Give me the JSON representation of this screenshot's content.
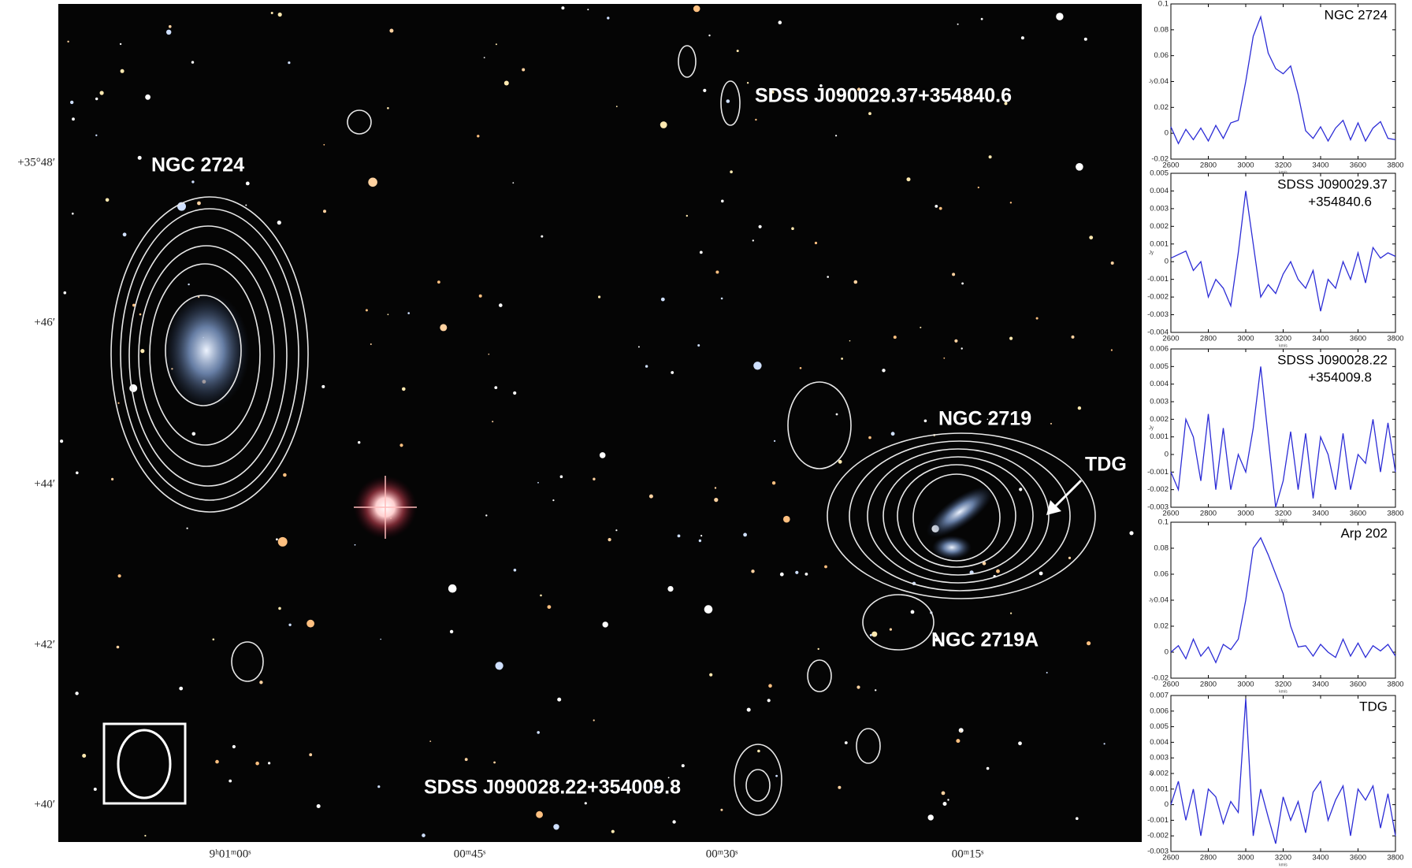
{
  "image": {
    "labels": [
      "NGC 2724",
      "SDSS J090029.37+354840.6",
      "NGC 2719",
      "TDG",
      "NGC 2719A",
      "SDSS J090028.22+354009.8"
    ],
    "ra_ticks": [
      "9ʰ01ᵐ00ˢ",
      "00ᵐ45ˢ",
      "00ᵐ30ˢ",
      "00ᵐ15ˢ"
    ],
    "dec_ticks": [
      "+35°48′",
      "+46′",
      "+44′",
      "+42′",
      "+40′"
    ]
  },
  "chart_data": [
    {
      "type": "line",
      "title": [
        "NGC 2724"
      ],
      "x_label": "km/s",
      "y_label": "Jy",
      "x": [
        2600,
        2640,
        2680,
        2720,
        2760,
        2800,
        2840,
        2880,
        2920,
        2960,
        3000,
        3040,
        3080,
        3120,
        3160,
        3200,
        3240,
        3280,
        3320,
        3360,
        3400,
        3440,
        3480,
        3520,
        3560,
        3600,
        3640,
        3680,
        3720,
        3760,
        3800
      ],
      "series": [
        {
          "color": "#2c2cd6",
          "values": [
            0.005,
            -0.008,
            0.003,
            -0.005,
            0.004,
            -0.006,
            0.006,
            -0.004,
            0.008,
            0.01,
            0.04,
            0.075,
            0.09,
            0.062,
            0.05,
            0.046,
            0.052,
            0.03,
            0.002,
            -0.004,
            0.005,
            -0.006,
            0.004,
            0.01,
            -0.005,
            0.008,
            -0.006,
            0.004,
            0.009,
            -0.004,
            -0.005
          ]
        }
      ],
      "xlim": [
        2600,
        3800
      ],
      "xticks": [
        2600,
        2800,
        3000,
        3200,
        3400,
        3600,
        3800
      ],
      "ylim": [
        -0.02,
        0.1
      ],
      "yticks": [
        -0.02,
        0,
        0.02,
        0.04,
        0.06,
        0.08,
        0.1
      ]
    },
    {
      "type": "line",
      "title": [
        "SDSS J090029.37",
        "+354840.6"
      ],
      "x_label": "km/s",
      "y_label": "Jy",
      "x": [
        2600,
        2640,
        2680,
        2720,
        2760,
        2800,
        2840,
        2880,
        2920,
        2960,
        3000,
        3040,
        3080,
        3120,
        3160,
        3200,
        3240,
        3280,
        3320,
        3360,
        3400,
        3440,
        3480,
        3520,
        3560,
        3600,
        3640,
        3680,
        3720,
        3760,
        3800
      ],
      "series": [
        {
          "color": "#2c2cd6",
          "values": [
            0.0002,
            0.0004,
            0.0006,
            -0.0005,
            0,
            -0.002,
            -0.001,
            -0.0015,
            -0.0025,
            0.0005,
            0.004,
            0.001,
            -0.002,
            -0.0013,
            -0.0018,
            -0.0007,
            0,
            -0.001,
            -0.0015,
            -0.0005,
            -0.0028,
            -0.001,
            -0.0015,
            0,
            -0.001,
            0.0005,
            -0.0012,
            0.0008,
            0.0002,
            0.0005,
            0.0003
          ]
        }
      ],
      "xlim": [
        2600,
        3800
      ],
      "xticks": [
        2600,
        2800,
        3000,
        3200,
        3400,
        3600,
        3800
      ],
      "ylim": [
        -0.004,
        0.005
      ],
      "yticks": [
        -0.004,
        -0.003,
        -0.002,
        -0.001,
        0,
        0.001,
        0.002,
        0.003,
        0.004,
        0.005
      ]
    },
    {
      "type": "line",
      "title": [
        "SDSS J090028.22",
        "+354009.8"
      ],
      "x_label": "km/s",
      "y_label": "Jy",
      "x": [
        2600,
        2640,
        2680,
        2720,
        2760,
        2800,
        2840,
        2880,
        2920,
        2960,
        3000,
        3040,
        3080,
        3120,
        3160,
        3200,
        3240,
        3280,
        3320,
        3360,
        3400,
        3440,
        3480,
        3520,
        3560,
        3600,
        3640,
        3680,
        3720,
        3760,
        3800
      ],
      "series": [
        {
          "color": "#2c2cd6",
          "values": [
            -0.001,
            -0.002,
            0.002,
            0.001,
            -0.0015,
            0.0023,
            -0.002,
            0.0015,
            -0.002,
            0,
            -0.001,
            0.0015,
            0.005,
            0.001,
            -0.003,
            -0.0015,
            0.0013,
            -0.002,
            0.0012,
            -0.0025,
            0.001,
            0,
            -0.002,
            0.0012,
            -0.002,
            0,
            -0.0005,
            0.002,
            -0.001,
            0.0018,
            -0.001
          ]
        }
      ],
      "xlim": [
        2600,
        3800
      ],
      "xticks": [
        2600,
        2800,
        3000,
        3200,
        3400,
        3600,
        3800
      ],
      "ylim": [
        -0.003,
        0.006
      ],
      "yticks": [
        -0.003,
        -0.002,
        -0.001,
        0,
        0.001,
        0.002,
        0.003,
        0.004,
        0.005,
        0.006
      ]
    },
    {
      "type": "line",
      "title": [
        "Arp 202"
      ],
      "x_label": "km/s",
      "y_label": "Jy",
      "x": [
        2600,
        2640,
        2680,
        2720,
        2760,
        2800,
        2840,
        2880,
        2920,
        2960,
        3000,
        3040,
        3080,
        3120,
        3160,
        3200,
        3240,
        3280,
        3320,
        3360,
        3400,
        3440,
        3480,
        3520,
        3560,
        3600,
        3640,
        3680,
        3720,
        3760,
        3800
      ],
      "series": [
        {
          "color": "#2c2cd6",
          "values": [
            0,
            0.005,
            -0.005,
            0.01,
            -0.003,
            0.004,
            -0.008,
            0.006,
            0.002,
            0.01,
            0.04,
            0.08,
            0.088,
            0.075,
            0.06,
            0.045,
            0.02,
            0.004,
            0.005,
            -0.003,
            0.006,
            0,
            -0.004,
            0.01,
            -0.003,
            0.007,
            -0.004,
            0.005,
            0.001,
            0.006,
            -0.003
          ]
        }
      ],
      "xlim": [
        2600,
        3800
      ],
      "xticks": [
        2600,
        2800,
        3000,
        3200,
        3400,
        3600,
        3800
      ],
      "ylim": [
        -0.02,
        0.1
      ],
      "yticks": [
        -0.02,
        0,
        0.02,
        0.04,
        0.06,
        0.08,
        0.1
      ]
    },
    {
      "type": "line",
      "title": [
        "TDG"
      ],
      "x_label": "km/s",
      "y_label": "Jy",
      "x": [
        2600,
        2640,
        2680,
        2720,
        2760,
        2800,
        2840,
        2880,
        2920,
        2960,
        3000,
        3040,
        3080,
        3120,
        3160,
        3200,
        3240,
        3280,
        3320,
        3360,
        3400,
        3440,
        3480,
        3520,
        3560,
        3600,
        3640,
        3680,
        3720,
        3760,
        3800
      ],
      "series": [
        {
          "color": "#2c2cd6",
          "values": [
            0,
            0.0015,
            -0.001,
            0.001,
            -0.002,
            0.001,
            0.0005,
            -0.0012,
            0.0002,
            -0.0005,
            0.0068,
            -0.002,
            0.001,
            -0.0008,
            -0.0025,
            0.0005,
            -0.001,
            0.0002,
            -0.0018,
            0.0008,
            0.0015,
            -0.001,
            0.0003,
            0.0012,
            -0.002,
            0.001,
            0.0003,
            0.0012,
            -0.0015,
            0.0007,
            -0.002
          ]
        }
      ],
      "xlim": [
        2600,
        3800
      ],
      "xticks": [
        2600,
        2800,
        3000,
        3200,
        3400,
        3600,
        3800
      ],
      "ylim": [
        -0.003,
        0.007
      ],
      "yticks": [
        -0.003,
        -0.002,
        -0.001,
        0,
        0.001,
        0.002,
        0.003,
        0.004,
        0.005,
        0.006,
        0.007
      ]
    }
  ]
}
